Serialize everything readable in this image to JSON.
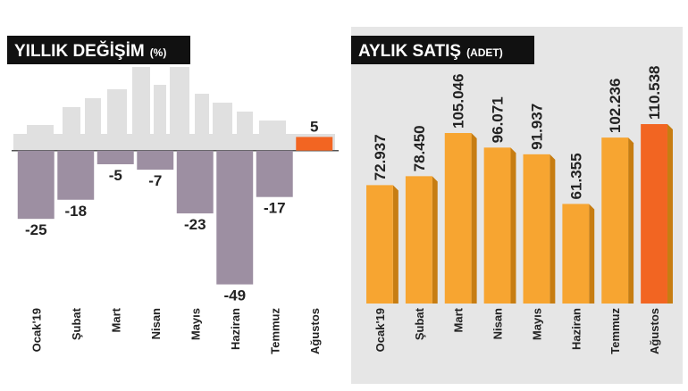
{
  "chart_data": [
    {
      "type": "bar",
      "title": "YILLIK DEĞİŞİM",
      "title_unit": "(%)",
      "categories": [
        "Ocak'19",
        "Şubat",
        "Mart",
        "Nisan",
        "Mayıs",
        "Haziran",
        "Temmuz",
        "Ağustos"
      ],
      "values": [
        -25,
        -18,
        -5,
        -7,
        -23,
        -49,
        -17,
        5
      ],
      "colors": [
        "#9d8fa2",
        "#9d8fa2",
        "#9d8fa2",
        "#9d8fa2",
        "#9d8fa2",
        "#9d8fa2",
        "#9d8fa2",
        "#f26522"
      ],
      "highlight_color": "#f26522",
      "ylim": [
        -56,
        29
      ],
      "label_orientation": "horizontal",
      "background": "#ffffff"
    },
    {
      "type": "bar",
      "title": "AYLIK SATIŞ",
      "title_unit": "(ADET)",
      "categories": [
        "Ocak'19",
        "Şubat",
        "Mart",
        "Nisan",
        "Mayıs",
        "Haziran",
        "Temmuz",
        "Ağustos"
      ],
      "values": [
        72937,
        78450,
        105046,
        96071,
        91937,
        61355,
        102236,
        110538
      ],
      "value_labels": [
        "72.937",
        "78.450",
        "105.046",
        "96.071",
        "91.937",
        "61.355",
        "102.236",
        "110.538"
      ],
      "colors": [
        "#f7a531",
        "#f7a531",
        "#f7a531",
        "#f7a531",
        "#f7a531",
        "#f7a531",
        "#f7a531",
        "#f26522"
      ],
      "highlight_color": "#f26522",
      "ylim": [
        0,
        143000
      ],
      "label_orientation": "vertical",
      "background": "#e6e6e6"
    }
  ]
}
